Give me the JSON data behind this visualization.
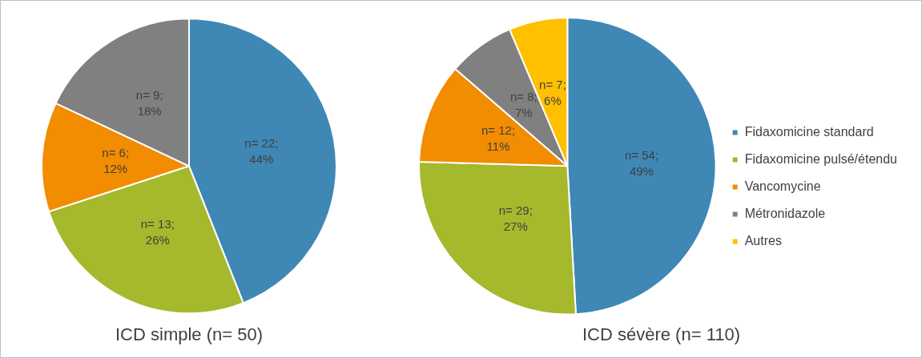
{
  "chart_data": [
    {
      "type": "pie",
      "title": "ICD simple (n= 50)",
      "categories": [
        null,
        null,
        null,
        null
      ],
      "values": [
        22,
        13,
        6,
        9
      ],
      "colors": [
        "#3f87b5",
        "#a6b82c",
        "#f28c00",
        "#808080"
      ],
      "value_labels": [
        "n= 22; 44%",
        "n= 13; 26%",
        "n= 6; 12%",
        "n= 9; 18%"
      ],
      "legend": false
    },
    {
      "type": "pie",
      "title": "ICD sévère (n= 110)",
      "categories": [
        "Fidaxomicine standard",
        "Fidaxomicine pulsé/étendu",
        "Vancomycine",
        "Métronidazole",
        "Autres"
      ],
      "values": [
        54,
        29,
        12,
        8,
        7
      ],
      "colors": [
        "#3f87b5",
        "#a6b82c",
        "#f28c00",
        "#808080",
        "#ffc000"
      ],
      "value_labels": [
        "n= 54; 49%",
        "n= 29; 27%",
        "n= 12; 11%",
        "n= 8; 7%",
        "n= 7; 6%"
      ],
      "legend": "right"
    }
  ]
}
